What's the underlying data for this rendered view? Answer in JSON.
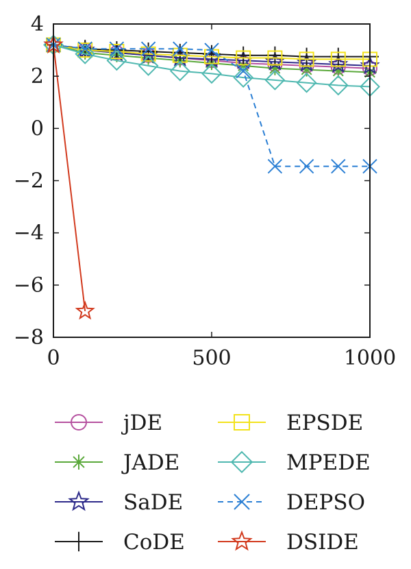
{
  "chart_data": {
    "type": "line",
    "title": "",
    "xlabel": "",
    "ylabel": "",
    "xlim": [
      0,
      1000
    ],
    "ylim": [
      -8,
      4
    ],
    "x_ticks": [
      0,
      500,
      1000
    ],
    "x_tick_labels": [
      "0",
      "500",
      "1000"
    ],
    "y_ticks": [
      4,
      2,
      0,
      -2,
      -4,
      -6,
      -8
    ],
    "y_tick_labels": [
      "4",
      "2",
      "0",
      "−2",
      "−4",
      "−6",
      "−8"
    ],
    "grid": false,
    "legend_position": "below",
    "series": [
      {
        "name": "jDE",
        "color": "#b5509f",
        "marker": "circle",
        "dash": "solid",
        "x": [
          0,
          100,
          200,
          300,
          400,
          500,
          600,
          700,
          800,
          900,
          1000
        ],
        "y": [
          3.2,
          3.0,
          2.9,
          2.8,
          2.7,
          2.6,
          2.5,
          2.45,
          2.4,
          2.35,
          2.3
        ]
      },
      {
        "name": "JADE",
        "color": "#5aa83a",
        "marker": "asterisk",
        "dash": "solid",
        "x": [
          0,
          100,
          200,
          300,
          400,
          500,
          600,
          700,
          800,
          900,
          1000
        ],
        "y": [
          3.2,
          2.9,
          2.8,
          2.7,
          2.6,
          2.5,
          2.4,
          2.3,
          2.25,
          2.2,
          2.15
        ]
      },
      {
        "name": "SaDE",
        "color": "#2d2a8a",
        "marker": "star",
        "dash": "solid",
        "x": [
          0,
          100,
          200,
          300,
          400,
          500,
          600,
          700,
          800,
          900,
          1000
        ],
        "y": [
          3.2,
          3.0,
          2.9,
          2.8,
          2.7,
          2.65,
          2.6,
          2.55,
          2.5,
          2.45,
          2.4
        ]
      },
      {
        "name": "CoDE",
        "color": "#1a1a1a",
        "marker": "plus",
        "dash": "solid",
        "x": [
          0,
          100,
          200,
          300,
          400,
          500,
          600,
          700,
          800,
          900,
          1000
        ],
        "y": [
          3.2,
          3.05,
          3.0,
          2.95,
          2.9,
          2.85,
          2.8,
          2.8,
          2.75,
          2.75,
          2.75
        ]
      },
      {
        "name": "EPSDE",
        "color": "#f2e21b",
        "marker": "square",
        "dash": "solid",
        "x": [
          0,
          100,
          200,
          300,
          400,
          500,
          600,
          700,
          800,
          900,
          1000
        ],
        "y": [
          3.2,
          3.0,
          2.95,
          2.85,
          2.8,
          2.75,
          2.7,
          2.7,
          2.65,
          2.65,
          2.65
        ]
      },
      {
        "name": "MPEDE",
        "color": "#4fb8b0",
        "marker": "diamond",
        "dash": "solid",
        "x": [
          0,
          100,
          200,
          300,
          400,
          500,
          600,
          700,
          800,
          900,
          1000
        ],
        "y": [
          3.2,
          2.85,
          2.6,
          2.4,
          2.2,
          2.1,
          1.95,
          1.85,
          1.75,
          1.65,
          1.6
        ]
      },
      {
        "name": "DEPSO",
        "color": "#2b7fd4",
        "marker": "x",
        "dash": "dashed",
        "x": [
          0,
          100,
          200,
          300,
          400,
          500,
          600,
          700,
          800,
          900,
          1000
        ],
        "y": [
          3.2,
          3.05,
          3.05,
          3.05,
          3.05,
          3.0,
          2.2,
          -1.45,
          -1.45,
          -1.45,
          -1.45
        ]
      },
      {
        "name": "DSIDE",
        "color": "#d23a1e",
        "marker": "star",
        "dash": "solid",
        "x": [
          0,
          100
        ],
        "y": [
          3.2,
          -7.0
        ]
      }
    ]
  }
}
